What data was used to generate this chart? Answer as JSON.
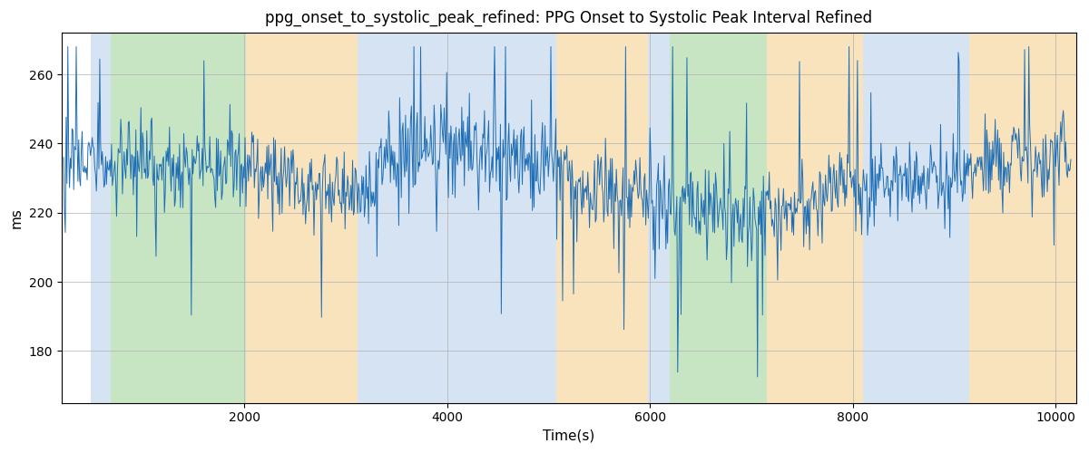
{
  "title": "ppg_onset_to_systolic_peak_refined: PPG Onset to Systolic Peak Interval Refined",
  "xlabel": "Time(s)",
  "ylabel": "ms",
  "xlim": [
    200,
    10200
  ],
  "ylim": [
    165,
    272
  ],
  "yticks": [
    180,
    200,
    220,
    240,
    260
  ],
  "xticks": [
    2000,
    4000,
    6000,
    8000,
    10000
  ],
  "line_color": "#1f6eb5",
  "line_width": 0.7,
  "background_color": "#ffffff",
  "grid_color": "#b0b0b0",
  "title_fontsize": 12,
  "label_fontsize": 11,
  "regions": [
    {
      "xmin": 490,
      "xmax": 680,
      "color": "#adc8e8",
      "alpha": 0.5
    },
    {
      "xmin": 680,
      "xmax": 2020,
      "color": "#90cc88",
      "alpha": 0.5
    },
    {
      "xmin": 2020,
      "xmax": 3120,
      "color": "#f5c87a",
      "alpha": 0.5
    },
    {
      "xmin": 3120,
      "xmax": 3320,
      "color": "#adc8e8",
      "alpha": 0.5
    },
    {
      "xmin": 3320,
      "xmax": 5080,
      "color": "#adc8e8",
      "alpha": 0.5
    },
    {
      "xmin": 5080,
      "xmax": 5980,
      "color": "#f5c87a",
      "alpha": 0.5
    },
    {
      "xmin": 5980,
      "xmax": 6200,
      "color": "#adc8e8",
      "alpha": 0.5
    },
    {
      "xmin": 6200,
      "xmax": 7150,
      "color": "#90cc88",
      "alpha": 0.5
    },
    {
      "xmin": 7150,
      "xmax": 7350,
      "color": "#f5c87a",
      "alpha": 0.5
    },
    {
      "xmin": 7350,
      "xmax": 8100,
      "color": "#f5c87a",
      "alpha": 0.5
    },
    {
      "xmin": 8100,
      "xmax": 9150,
      "color": "#adc8e8",
      "alpha": 0.5
    },
    {
      "xmin": 9150,
      "xmax": 10250,
      "color": "#f5c87a",
      "alpha": 0.5
    }
  ],
  "seed": 17,
  "n_points": 1200,
  "x_start": 220,
  "x_end": 10150,
  "base_value": 228
}
